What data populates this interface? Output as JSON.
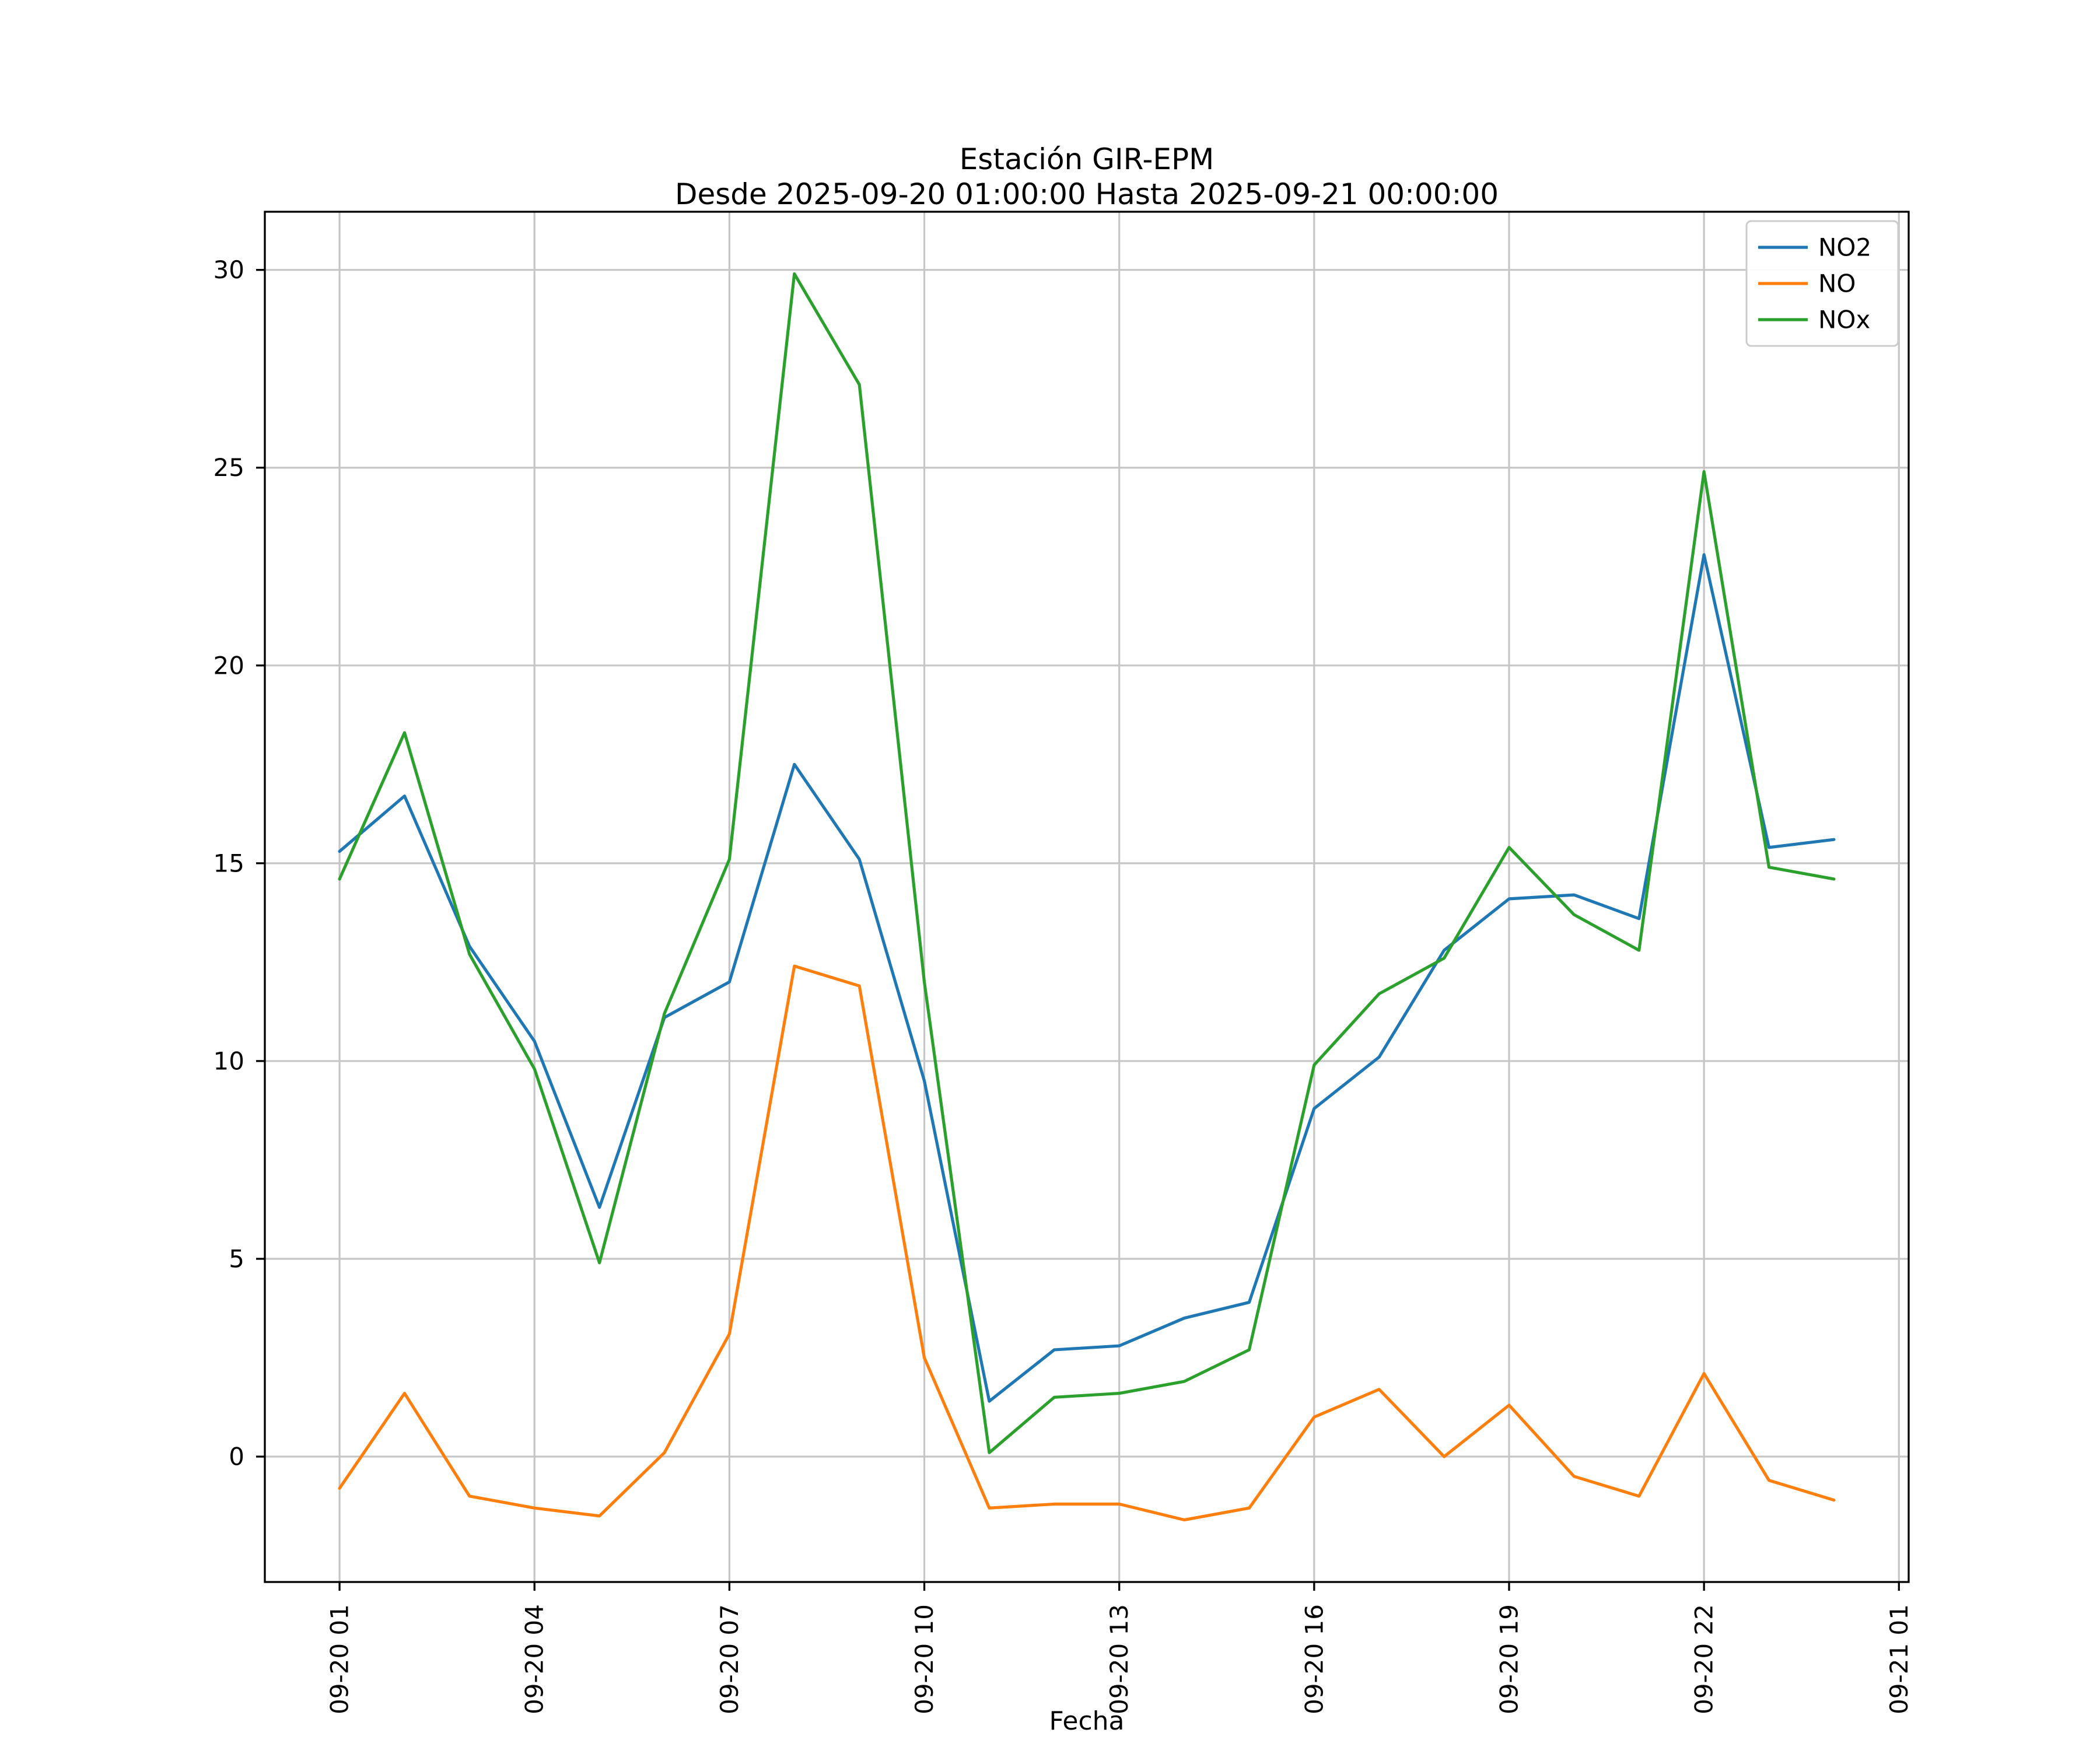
{
  "figure": {
    "title_line1": "Estación GIR-EPM",
    "title_line2": "Desde 2025-09-20 01:00:00 Hasta 2025-09-21 00:00:00",
    "xlabel": "Fecha"
  },
  "chart_data": {
    "type": "line",
    "title": "Estación GIR-EPM\nDesde 2025-09-20 01:00:00 Hasta 2025-09-21 00:00:00",
    "xlabel": "Fecha",
    "ylabel": "",
    "grid": true,
    "legend_position": "upper right",
    "background_color": "#ffffff",
    "grid_color": "#c6c6c6",
    "axis_color": "#000000",
    "xlim": [
      -0.15,
      25.15
    ],
    "ylim": [
      -3.17,
      31.47
    ],
    "yticks": [
      0,
      5,
      10,
      15,
      20,
      25,
      30
    ],
    "xticks": [
      {
        "hour": 1,
        "label": "09-20 01"
      },
      {
        "hour": 4,
        "label": "09-20 04"
      },
      {
        "hour": 7,
        "label": "09-20 07"
      },
      {
        "hour": 10,
        "label": "09-20 10"
      },
      {
        "hour": 13,
        "label": "09-20 13"
      },
      {
        "hour": 16,
        "label": "09-20 16"
      },
      {
        "hour": 19,
        "label": "09-20 19"
      },
      {
        "hour": 22,
        "label": "09-20 22"
      },
      {
        "hour": 25,
        "label": "09-21 01"
      }
    ],
    "x_hours": [
      1,
      2,
      3,
      4,
      5,
      6,
      7,
      8,
      9,
      10,
      11,
      12,
      13,
      14,
      15,
      16,
      17,
      18,
      19,
      20,
      21,
      22,
      23,
      24
    ],
    "series": [
      {
        "name": "NO2",
        "color": "#1f77b4",
        "values": [
          15.3,
          16.7,
          12.9,
          10.5,
          6.3,
          11.1,
          12.0,
          17.5,
          15.1,
          9.5,
          1.4,
          2.7,
          2.8,
          3.5,
          3.9,
          8.8,
          10.1,
          12.8,
          14.1,
          14.2,
          13.6,
          22.8,
          15.4,
          15.6
        ]
      },
      {
        "name": "NO",
        "color": "#ff7f0e",
        "values": [
          -0.8,
          1.6,
          -1.0,
          -1.3,
          -1.5,
          0.1,
          3.1,
          12.4,
          11.9,
          2.5,
          -1.3,
          -1.2,
          -1.2,
          -1.6,
          -1.3,
          1.0,
          1.7,
          0.0,
          1.3,
          -0.5,
          -1.0,
          2.1,
          -0.6,
          -1.1
        ]
      },
      {
        "name": "NOx",
        "color": "#2ca02c",
        "values": [
          14.6,
          18.3,
          12.7,
          9.8,
          4.9,
          11.2,
          15.1,
          29.9,
          27.1,
          12.0,
          0.1,
          1.5,
          1.6,
          1.9,
          2.7,
          9.9,
          11.7,
          12.6,
          15.4,
          13.7,
          12.8,
          24.9,
          14.9,
          14.6
        ]
      }
    ]
  }
}
